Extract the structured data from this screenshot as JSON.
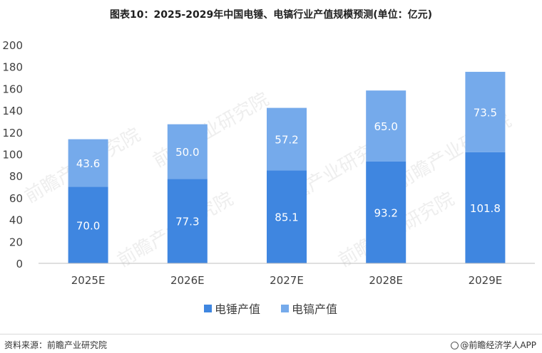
{
  "title": "图表10：2025-2029年中国电锤、电镐行业产值规模预测(单位：亿元)",
  "source": "资料来源：前瞻产业研究院",
  "brand": "@前瞻经济学人APP",
  "watermark": "前瞻产业研究院",
  "colors": {
    "series1": "#3f86e0",
    "series2": "#75aaeb",
    "axis": "#bfbfbf",
    "text": "#404040",
    "label": "#ffffff"
  },
  "chart_data": {
    "type": "bar",
    "stacked": true,
    "categories": [
      "2025E",
      "2026E",
      "2027E",
      "2028E",
      "2029E"
    ],
    "series": [
      {
        "name": "电锤产值",
        "values": [
          70.0,
          77.3,
          85.1,
          93.2,
          101.8
        ],
        "labels": [
          "70.0",
          "77.3",
          "85.1",
          "93.2",
          "101.8"
        ]
      },
      {
        "name": "电镐产值",
        "values": [
          43.6,
          50.0,
          57.2,
          65.0,
          73.5
        ],
        "labels": [
          "43.6",
          "50.0",
          "57.2",
          "65.0",
          "73.5"
        ]
      }
    ],
    "ylim": [
      0,
      200
    ],
    "yticks": [
      0,
      20,
      40,
      60,
      80,
      100,
      120,
      140,
      160,
      180,
      200
    ],
    "grid": false,
    "legend": "bottom"
  }
}
